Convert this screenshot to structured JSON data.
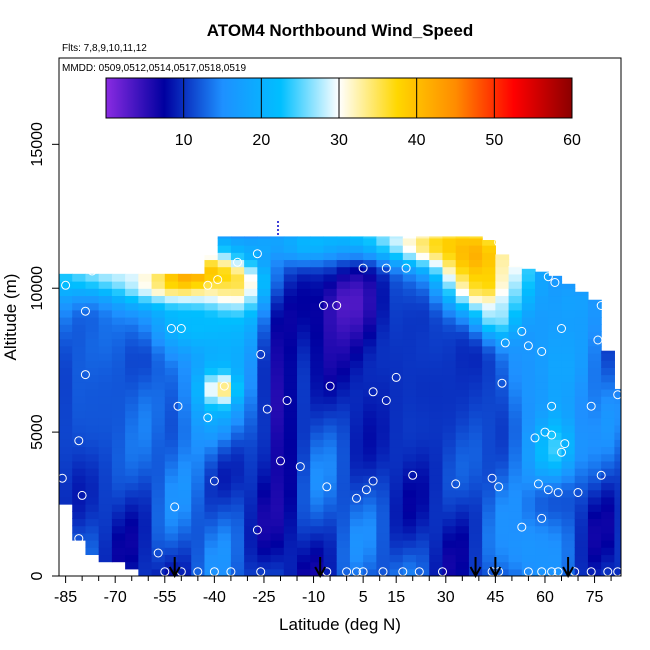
{
  "chart_data": {
    "type": "heatmap",
    "title": "ATOM4 Northbound Wind_Speed",
    "subtitle_flights": "Flts: 7,8,9,10,11,12",
    "subtitle_dates": "MMDD: 0509,0512,0514,0517,0518,0519",
    "xlabel": "Latitude (deg N)",
    "ylabel": "Altitude (m)",
    "xlim": [
      -87,
      83
    ],
    "ylim": [
      0,
      18000
    ],
    "x_ticks": [
      -85,
      -70,
      -55,
      -40,
      -25,
      -10,
      5,
      15,
      30,
      45,
      60,
      75
    ],
    "x_minor_step": 5,
    "y_ticks": [
      0,
      5000,
      10000,
      15000
    ],
    "colorbar": {
      "range": [
        0,
        60
      ],
      "ticks": [
        10,
        20,
        30,
        40,
        50,
        60
      ],
      "colors": [
        "#8a2be2",
        "#0000a0",
        "#1e90ff",
        "#00bfff",
        "#ffffff",
        "#ffd700",
        "#ff8c00",
        "#ff0000",
        "#8b0000"
      ]
    },
    "arrow_latitudes": [
      -52,
      -8,
      39,
      45,
      67
    ],
    "domain_top": [
      {
        "x": -85,
        "alt": 10500
      },
      {
        "x": -42,
        "alt": 10500
      },
      {
        "x": -40,
        "alt": 11800
      },
      {
        "x": 28,
        "alt": 11800
      },
      {
        "x": 42,
        "alt": 11800
      },
      {
        "x": 50,
        "alt": 10800
      },
      {
        "x": 62,
        "alt": 10500
      },
      {
        "x": 75,
        "alt": 9600
      },
      {
        "x": 82,
        "alt": 6500
      }
    ],
    "domain_bottom": [
      {
        "x": -87,
        "alt": 3500
      },
      {
        "x": -83,
        "alt": 1800
      },
      {
        "x": -79,
        "alt": 800
      },
      {
        "x": -71,
        "alt": 600
      },
      {
        "x": -56,
        "alt": 0
      },
      {
        "x": 82,
        "alt": 0
      }
    ],
    "features": [
      {
        "x": -48,
        "alt": 10300,
        "sx": 14,
        "sy": 700,
        "value": 55
      },
      {
        "x": -70,
        "alt": 10500,
        "sx": 14,
        "sy": 600,
        "value": 32
      },
      {
        "x": -38,
        "alt": 9900,
        "sx": 7,
        "sy": 700,
        "value": 40
      },
      {
        "x": -46,
        "alt": 8800,
        "sx": 13,
        "sy": 800,
        "value": 22
      },
      {
        "x": -10,
        "alt": 11500,
        "sx": 22,
        "sy": 500,
        "value": 22
      },
      {
        "x": 12,
        "alt": 11700,
        "sx": 12,
        "sy": 500,
        "value": 28
      },
      {
        "x": 28,
        "alt": 11500,
        "sx": 10,
        "sy": 500,
        "value": 38
      },
      {
        "x": 38,
        "alt": 11000,
        "sx": 9,
        "sy": 900,
        "value": 46
      },
      {
        "x": 42,
        "alt": 10000,
        "sx": 8,
        "sy": 700,
        "value": 48
      },
      {
        "x": 46,
        "alt": 9000,
        "sx": 5,
        "sy": 600,
        "value": 42
      },
      {
        "x": 50,
        "alt": 10500,
        "sx": 3,
        "sy": 1300,
        "value": 34
      },
      {
        "x": 60,
        "alt": 7500,
        "sx": 9,
        "sy": 1600,
        "value": 20
      },
      {
        "x": 62,
        "alt": 4500,
        "sx": 6,
        "sy": 1000,
        "value": 26
      },
      {
        "x": 68,
        "alt": 9500,
        "sx": 8,
        "sy": 1000,
        "value": 18
      },
      {
        "x": -40,
        "alt": 6500,
        "sx": 8,
        "sy": 1500,
        "value": 22
      },
      {
        "x": -38,
        "alt": 6500,
        "sx": 3,
        "sy": 350,
        "value": 35
      },
      {
        "x": 2,
        "alt": 9300,
        "sx": 8,
        "sy": 1300,
        "value": 1
      },
      {
        "x": -20,
        "alt": 6000,
        "sx": 4,
        "sy": 3000,
        "value": 5
      },
      {
        "x": -75,
        "alt": 6000,
        "sx": 10,
        "sy": 2500,
        "value": 12
      },
      {
        "x": 55,
        "alt": 1000,
        "sx": 8,
        "sy": 1000,
        "value": 16
      },
      {
        "x": 25,
        "alt": 6500,
        "sx": 18,
        "sy": 2500,
        "value": 10
      },
      {
        "x": 55,
        "alt": 7000,
        "sx": 4,
        "sy": 1500,
        "value": 16
      }
    ],
    "observations": [
      {
        "x": -85,
        "alt": 10100
      },
      {
        "x": -77,
        "alt": 10600
      },
      {
        "x": -79,
        "alt": 9200
      },
      {
        "x": -79,
        "alt": 7000
      },
      {
        "x": -81,
        "alt": 4700
      },
      {
        "x": -80,
        "alt": 2800
      },
      {
        "x": -86,
        "alt": 3400
      },
      {
        "x": -81,
        "alt": 1300
      },
      {
        "x": -57,
        "alt": 800
      },
      {
        "x": -52,
        "alt": 2400
      },
      {
        "x": -53,
        "alt": 8600
      },
      {
        "x": -50,
        "alt": 8600
      },
      {
        "x": -51,
        "alt": 5900
      },
      {
        "x": -42,
        "alt": 10100
      },
      {
        "x": -39,
        "alt": 10300
      },
      {
        "x": -33,
        "alt": 10900
      },
      {
        "x": -27,
        "alt": 11200
      },
      {
        "x": -40,
        "alt": 3300
      },
      {
        "x": -42,
        "alt": 5500
      },
      {
        "x": -37,
        "alt": 6600
      },
      {
        "x": -26,
        "alt": 7700
      },
      {
        "x": -24,
        "alt": 5800
      },
      {
        "x": -18,
        "alt": 6100
      },
      {
        "x": -20,
        "alt": 4000
      },
      {
        "x": -14,
        "alt": 3800
      },
      {
        "x": -27,
        "alt": 1600
      },
      {
        "x": -6,
        "alt": 3100
      },
      {
        "x": -5,
        "alt": 6600
      },
      {
        "x": -7,
        "alt": 9400
      },
      {
        "x": -3,
        "alt": 9400
      },
      {
        "x": 5,
        "alt": 10700
      },
      {
        "x": 8,
        "alt": 6400
      },
      {
        "x": 12,
        "alt": 6100
      },
      {
        "x": 15,
        "alt": 6900
      },
      {
        "x": 12,
        "alt": 10700
      },
      {
        "x": 18,
        "alt": 10700
      },
      {
        "x": 6,
        "alt": 3000
      },
      {
        "x": 3,
        "alt": 2700
      },
      {
        "x": 8,
        "alt": 3300
      },
      {
        "x": 20,
        "alt": 3500
      },
      {
        "x": 33,
        "alt": 3200
      },
      {
        "x": 44,
        "alt": 3400
      },
      {
        "x": 46,
        "alt": 3100
      },
      {
        "x": 46,
        "alt": 11600
      },
      {
        "x": 48,
        "alt": 8100
      },
      {
        "x": 47,
        "alt": 6700
      },
      {
        "x": 53,
        "alt": 8500
      },
      {
        "x": 55,
        "alt": 8000
      },
      {
        "x": 59,
        "alt": 7800
      },
      {
        "x": 61,
        "alt": 10400
      },
      {
        "x": 63,
        "alt": 10200
      },
      {
        "x": 65,
        "alt": 8600
      },
      {
        "x": 71,
        "alt": 10900
      },
      {
        "x": 77,
        "alt": 9400
      },
      {
        "x": 81,
        "alt": 9300
      },
      {
        "x": 76,
        "alt": 8200
      },
      {
        "x": 62,
        "alt": 5900
      },
      {
        "x": 66,
        "alt": 4600
      },
      {
        "x": 65,
        "alt": 4300
      },
      {
        "x": 74,
        "alt": 5900
      },
      {
        "x": 57,
        "alt": 4800
      },
      {
        "x": 60,
        "alt": 5000
      },
      {
        "x": 62,
        "alt": 4900
      },
      {
        "x": 58,
        "alt": 3200
      },
      {
        "x": 61,
        "alt": 3000
      },
      {
        "x": 64,
        "alt": 2900
      },
      {
        "x": 70,
        "alt": 2900
      },
      {
        "x": 77,
        "alt": 3500
      },
      {
        "x": 53,
        "alt": 1700
      },
      {
        "x": 59,
        "alt": 2000
      },
      {
        "x": 82,
        "alt": 6300
      }
    ],
    "ground_observations": [
      -55,
      -50,
      -45,
      -40,
      -35,
      -26,
      -6,
      0,
      3,
      5,
      11,
      17,
      22,
      29,
      44,
      46,
      55,
      59,
      62,
      64,
      69,
      74,
      79,
      82
    ],
    "ground_observations_alt": 150
  }
}
